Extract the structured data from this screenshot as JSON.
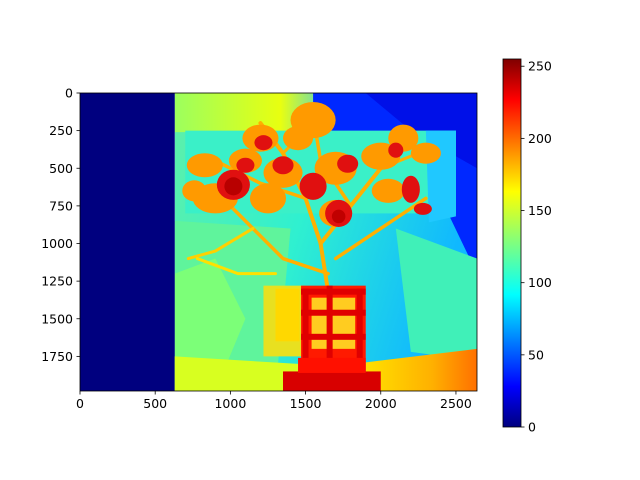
{
  "chart_data": {
    "type": "heatmap",
    "title": "",
    "xlabel": "",
    "ylabel": "",
    "colormap": "jet",
    "image_size": {
      "width": 2640,
      "height": 1980
    },
    "xlim": [
      0,
      2640
    ],
    "ylim": [
      1980,
      0
    ],
    "x_ticks": [
      0,
      500,
      1000,
      1500,
      2000,
      2500
    ],
    "x_tick_labels": [
      "0",
      "500",
      "1000",
      "1500",
      "2000",
      "2500"
    ],
    "y_ticks": [
      0,
      250,
      500,
      750,
      1000,
      1250,
      1500,
      1750
    ],
    "y_tick_labels": [
      "0",
      "250",
      "500",
      "750",
      "1000",
      "1250",
      "1500",
      "1750"
    ],
    "colorbar": {
      "range": [
        0,
        255
      ],
      "ticks": [
        0,
        50,
        100,
        150,
        200,
        250
      ],
      "tick_labels": [
        "0",
        "50",
        "100",
        "150",
        "200",
        "250"
      ]
    },
    "regions": [
      {
        "name": "left-border",
        "x": [
          0,
          630
        ],
        "y": [
          0,
          1980
        ],
        "value": 0
      },
      {
        "name": "wall-upper-right",
        "x": [
          1500,
          2640
        ],
        "y": [
          0,
          500
        ],
        "value": 20
      },
      {
        "name": "wall-background",
        "x": [
          630,
          2640
        ],
        "y": [
          200,
          1900
        ],
        "value": 110
      },
      {
        "name": "floor-strip",
        "x": [
          630,
          2640
        ],
        "y": [
          1800,
          1980
        ],
        "value": 175
      },
      {
        "name": "plant-branches",
        "x": [
          700,
          2300
        ],
        "y": [
          100,
          1300
        ],
        "value": 190
      },
      {
        "name": "flowers",
        "x": [
          950,
          2300
        ],
        "y": [
          300,
          1000
        ],
        "value": 235
      },
      {
        "name": "pot",
        "x": [
          1450,
          1900
        ],
        "y": [
          1280,
          1980
        ],
        "value": 245
      }
    ]
  }
}
